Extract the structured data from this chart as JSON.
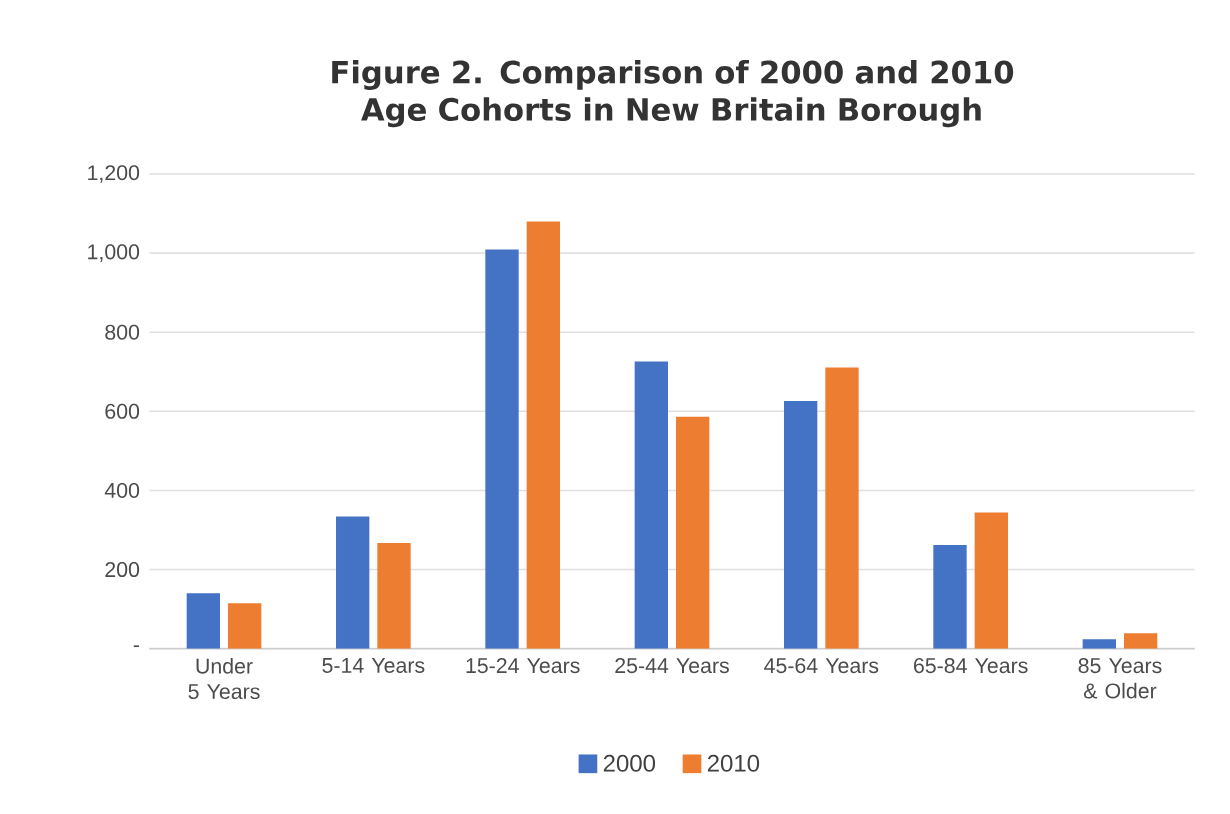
{
  "chart_data": {
    "type": "bar",
    "title": "Figure 2. Comparison of 2000 and 2010 Age Cohorts in New Britain Borough",
    "categories": [
      "Under 5 Years",
      "5-14 Years",
      "15-24 Years",
      "25-44 Years",
      "45-64 Years",
      "65-84 Years",
      "85 Years & Older"
    ],
    "series": [
      {
        "name": "2000",
        "color": "#4472c4",
        "values": [
          140,
          334,
          1009,
          726,
          626,
          262,
          24
        ]
      },
      {
        "name": "2010",
        "color": "#ed7d31",
        "values": [
          115,
          267,
          1080,
          586,
          711,
          344,
          39
        ]
      }
    ],
    "ylim": [
      0,
      1200
    ],
    "yticks": [
      {
        "value": 0,
        "label": "-"
      },
      {
        "value": 200,
        "label": "200"
      },
      {
        "value": 400,
        "label": "400"
      },
      {
        "value": 600,
        "label": "600"
      },
      {
        "value": 800,
        "label": "800"
      },
      {
        "value": 1000,
        "label": "1,000"
      },
      {
        "value": 1200,
        "label": "1,200"
      }
    ],
    "grid": "y",
    "legend": "bottom"
  }
}
